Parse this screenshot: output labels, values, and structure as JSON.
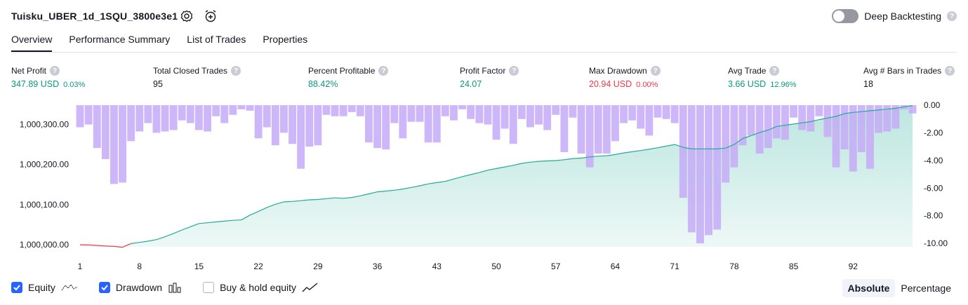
{
  "header": {
    "title": "Tuisku_UBER_1d_1SQU_3800e3e1",
    "toggle_label": "Deep Backtesting",
    "help_glyph": "?"
  },
  "tabs": [
    {
      "label": "Overview"
    },
    {
      "label": "Performance Summary"
    },
    {
      "label": "List of Trades"
    },
    {
      "label": "Properties"
    }
  ],
  "metrics": [
    {
      "label": "Net Profit",
      "value": "347.89 USD",
      "sub": "0.03%",
      "tone": "pos"
    },
    {
      "label": "Total Closed Trades",
      "value": "95",
      "sub": "",
      "tone": "neutral"
    },
    {
      "label": "Percent Profitable",
      "value": "88.42%",
      "sub": "",
      "tone": "pos"
    },
    {
      "label": "Profit Factor",
      "value": "24.07",
      "sub": "",
      "tone": "pos"
    },
    {
      "label": "Max Drawdown",
      "value": "20.94 USD",
      "sub": "0.00%",
      "tone": "neg"
    },
    {
      "label": "Avg Trade",
      "value": "3.66 USD",
      "sub": "12.96%",
      "tone": "pos"
    },
    {
      "label": "Avg # Bars in Trades",
      "value": "18",
      "sub": "",
      "tone": "neutral"
    }
  ],
  "legend": {
    "equity": "Equity",
    "drawdown": "Drawdown",
    "buy_hold": "Buy & hold equity"
  },
  "mode": {
    "absolute": "Absolute",
    "percentage": "Percentage"
  },
  "colors": {
    "equity_line": "#22ab94",
    "equity_neg_line": "#f23645",
    "drawdown_bar": "#c5aaf7",
    "accent": "#2962ff"
  },
  "chart_data": {
    "type": "bar",
    "x_ticks": [
      "1",
      "8",
      "15",
      "22",
      "29",
      "36",
      "43",
      "50",
      "57",
      "64",
      "71",
      "78",
      "85",
      "92"
    ],
    "equity_axis": {
      "ticks": [
        "1,000,000.00",
        "1,000,100.00",
        "1,000,200.00",
        "1,000,300.00"
      ],
      "values": [
        1000000,
        1000100,
        1000200,
        1000300
      ],
      "range": [
        999995,
        1000348
      ]
    },
    "drawdown_axis": {
      "ticks": [
        "0.00",
        "-2.00",
        "-4.00",
        "-6.00",
        "-8.00",
        "-10.00"
      ],
      "values": [
        0,
        -2,
        -4,
        -6,
        -8,
        -10
      ],
      "range": [
        -10.5,
        0
      ]
    },
    "series": [
      {
        "name": "Equity",
        "values": [
          1000000,
          999999.5,
          999998.5,
          999997,
          999996,
          999994,
          1000003,
          1000006,
          1000009,
          1000013,
          1000020,
          1000028,
          1000037,
          1000045,
          1000053,
          1000055,
          1000057,
          1000059,
          1000061,
          1000062,
          1000074,
          1000083,
          1000093,
          1000101,
          1000107,
          1000108,
          1000110,
          1000112,
          1000113,
          1000115,
          1000117,
          1000116,
          1000118,
          1000122,
          1000127,
          1000132,
          1000134,
          1000136,
          1000139,
          1000143,
          1000147,
          1000152,
          1000155,
          1000158,
          1000164,
          1000170,
          1000175,
          1000180,
          1000186,
          1000190,
          1000194,
          1000198,
          1000203,
          1000206,
          1000208,
          1000209,
          1000210,
          1000212,
          1000215,
          1000216,
          1000219,
          1000221,
          1000222,
          1000225,
          1000229,
          1000232,
          1000235,
          1000238,
          1000242,
          1000246,
          1000250,
          1000243,
          1000239,
          1000239,
          1000239,
          1000239,
          1000241,
          1000250,
          1000265,
          1000272,
          1000280,
          1000286,
          1000295,
          1000298,
          1000301,
          1000304,
          1000307,
          1000312,
          1000316,
          1000320,
          1000327,
          1000330,
          1000332,
          1000334,
          1000336,
          1000338,
          1000340,
          1000344,
          1000347
        ]
      },
      {
        "name": "Drawdown",
        "values": [
          -1.6,
          -1.4,
          -3.1,
          -3.9,
          -5.7,
          -5.6,
          -2.6,
          -1.9,
          -1.3,
          -2.0,
          -1.9,
          -1.8,
          -1.1,
          -1.3,
          -1.8,
          -1.9,
          -0.8,
          -1.3,
          -0.7,
          -0.3,
          -0.4,
          -2.4,
          -1.6,
          -2.9,
          -2.0,
          -2.8,
          -4.6,
          -3.0,
          -2.9,
          -0.7,
          -0.8,
          -0.8,
          -0.5,
          -0.8,
          -2.7,
          -3.1,
          -3.2,
          -1.3,
          -2.4,
          -1.2,
          -1.2,
          -2.7,
          -2.7,
          -0.8,
          -1.1,
          -0.3,
          -1.0,
          -1.3,
          -1.4,
          -2.5,
          -1.7,
          -2.8,
          -1.0,
          -1.6,
          -1.4,
          -1.8,
          -0.7,
          -3.4,
          -0.9,
          -3.5,
          -4.5,
          -3.5,
          -3.5,
          -2.6,
          -1.3,
          -1.1,
          -1.7,
          -2.2,
          -0.9,
          -1.0,
          -1.3,
          -6.7,
          -9.2,
          -10.0,
          -9.4,
          -9.0,
          -5.6,
          -4.5,
          -2.9,
          -2.2,
          -3.5,
          -3.1,
          -2.4,
          -2.5,
          -0.9,
          -1.8,
          -1.9,
          -0.8,
          -2.3,
          -4.5,
          -3.2,
          -4.8,
          -3.4,
          -4.6,
          -2.0,
          -1.9,
          -1.7,
          -0.3,
          -0.6
        ]
      }
    ],
    "xlabel": "",
    "ylabel": "",
    "grid": false,
    "legend_position": "bottom-left"
  }
}
